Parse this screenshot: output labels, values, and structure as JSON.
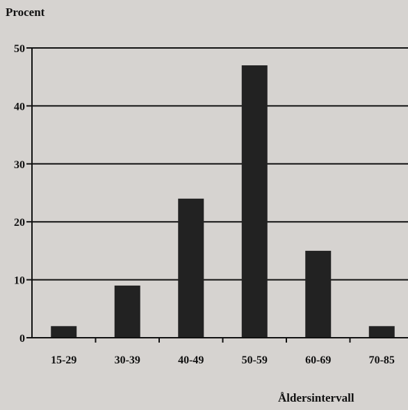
{
  "chart_data": {
    "type": "bar",
    "title": "",
    "ylabel": "Procent",
    "xlabel": "Åldersintervall",
    "categories": [
      "15-29",
      "30-39",
      "40-49",
      "50-59",
      "60-69",
      "70-85"
    ],
    "values": [
      2,
      9,
      24,
      47,
      15,
      2
    ],
    "ylim": [
      0,
      50
    ],
    "yticks": [
      0,
      10,
      20,
      30,
      40,
      50
    ],
    "grid": true,
    "bar_color": "#222222",
    "axis_color": "#111111",
    "background_color": "#d6d3d0"
  }
}
